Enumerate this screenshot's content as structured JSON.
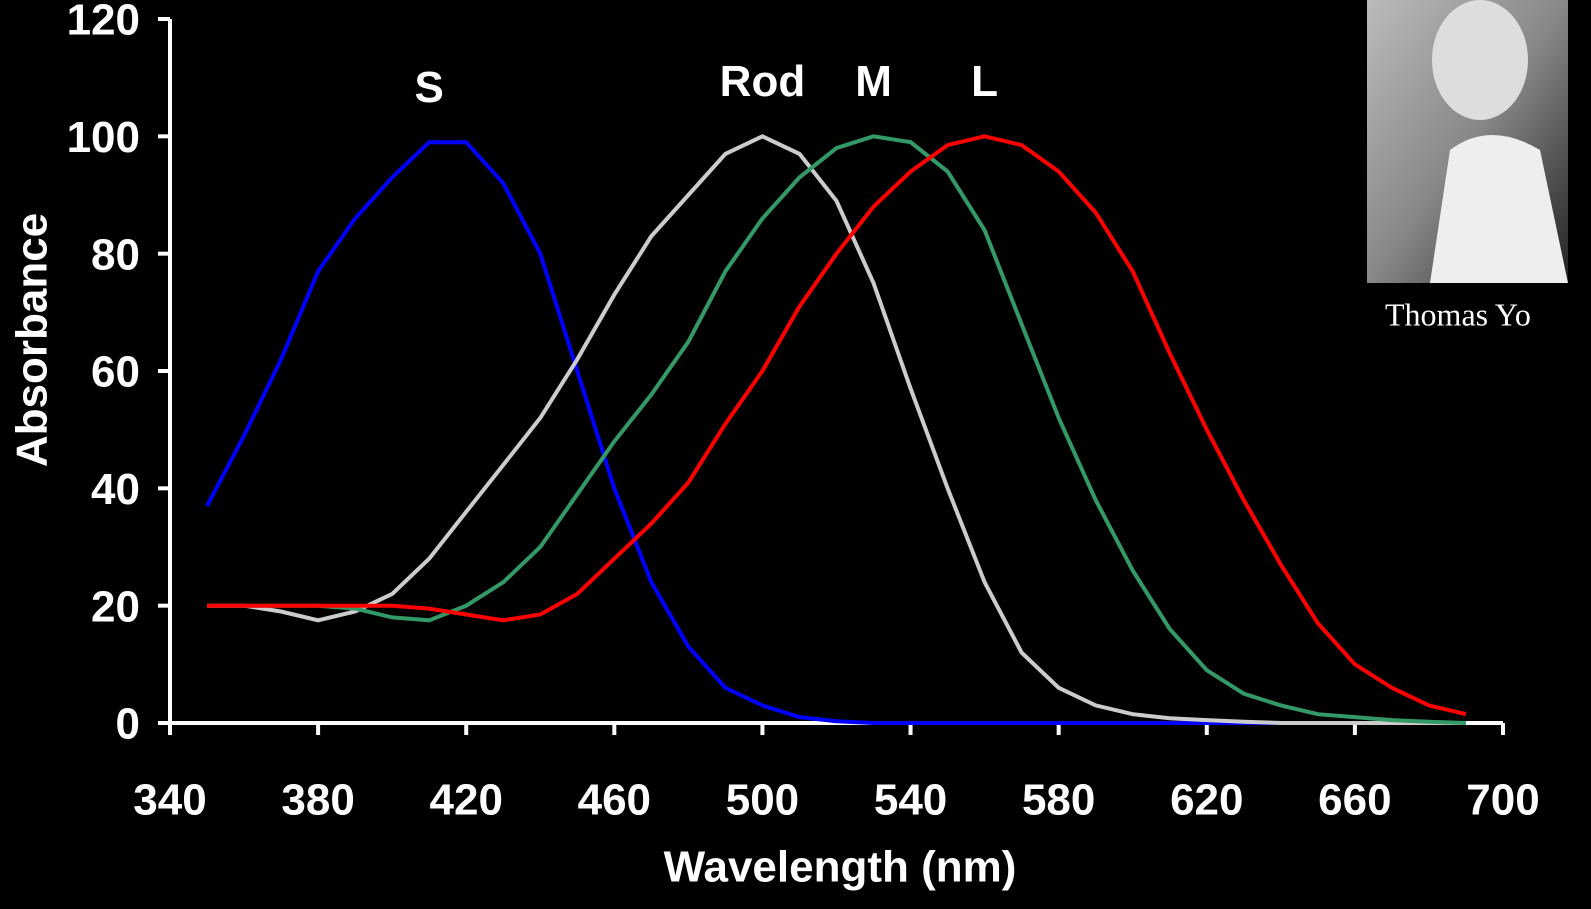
{
  "chart_data": {
    "type": "line",
    "x_label": "Wavelength (nm)",
    "y_label": "Absorbance",
    "x": [
      350,
      360,
      370,
      380,
      390,
      400,
      410,
      420,
      430,
      440,
      450,
      460,
      470,
      480,
      490,
      500,
      510,
      520,
      530,
      540,
      550,
      560,
      570,
      580,
      590,
      600,
      610,
      620,
      630,
      640,
      650,
      660,
      670,
      680,
      690
    ],
    "series": [
      {
        "name": "S",
        "color": "#0000ff",
        "values": [
          37,
          49,
          62,
          77,
          86,
          93,
          99,
          99,
          92,
          80,
          60,
          40,
          24,
          13,
          6,
          3,
          1,
          0.3,
          0,
          0,
          0,
          0,
          0,
          0,
          0,
          0,
          0,
          0,
          0,
          0,
          0,
          0,
          0,
          0,
          0
        ]
      },
      {
        "name": "Rod",
        "color": "#cccccc",
        "values": [
          20,
          20,
          19,
          17.5,
          19,
          22,
          28,
          36,
          44,
          52,
          62,
          73,
          83,
          90,
          97,
          100,
          97,
          89,
          75,
          57,
          40,
          24,
          12,
          6,
          3,
          1.5,
          0.8,
          0.5,
          0.2,
          0,
          0,
          0,
          0,
          0,
          0
        ]
      },
      {
        "name": "M",
        "color": "#339966",
        "values": [
          20,
          20,
          20,
          20,
          19.5,
          18,
          17.5,
          20,
          24,
          30,
          39,
          48,
          56,
          65,
          77,
          86,
          93,
          98,
          100,
          99,
          94,
          84,
          68,
          52,
          38,
          26,
          16,
          9,
          5,
          3,
          1.5,
          1,
          0.5,
          0.2,
          0
        ]
      },
      {
        "name": "L",
        "color": "#ff0000",
        "values": [
          20,
          20,
          20,
          20,
          20,
          20,
          19.5,
          18.5,
          17.5,
          18.5,
          22,
          28,
          34,
          41,
          51,
          60,
          71,
          80,
          88,
          94,
          98.5,
          100,
          98.5,
          94,
          87,
          77,
          63,
          50,
          38,
          27,
          17,
          10,
          6,
          3,
          1.5
        ]
      }
    ],
    "xlim": [
      340,
      700
    ],
    "xticks": [
      340,
      380,
      420,
      460,
      500,
      540,
      580,
      620,
      660,
      700
    ],
    "ylim": [
      0,
      120
    ],
    "yticks": [
      0,
      20,
      40,
      60,
      80,
      100,
      120
    ]
  },
  "photo": {
    "caption": "Thomas Yo"
  }
}
